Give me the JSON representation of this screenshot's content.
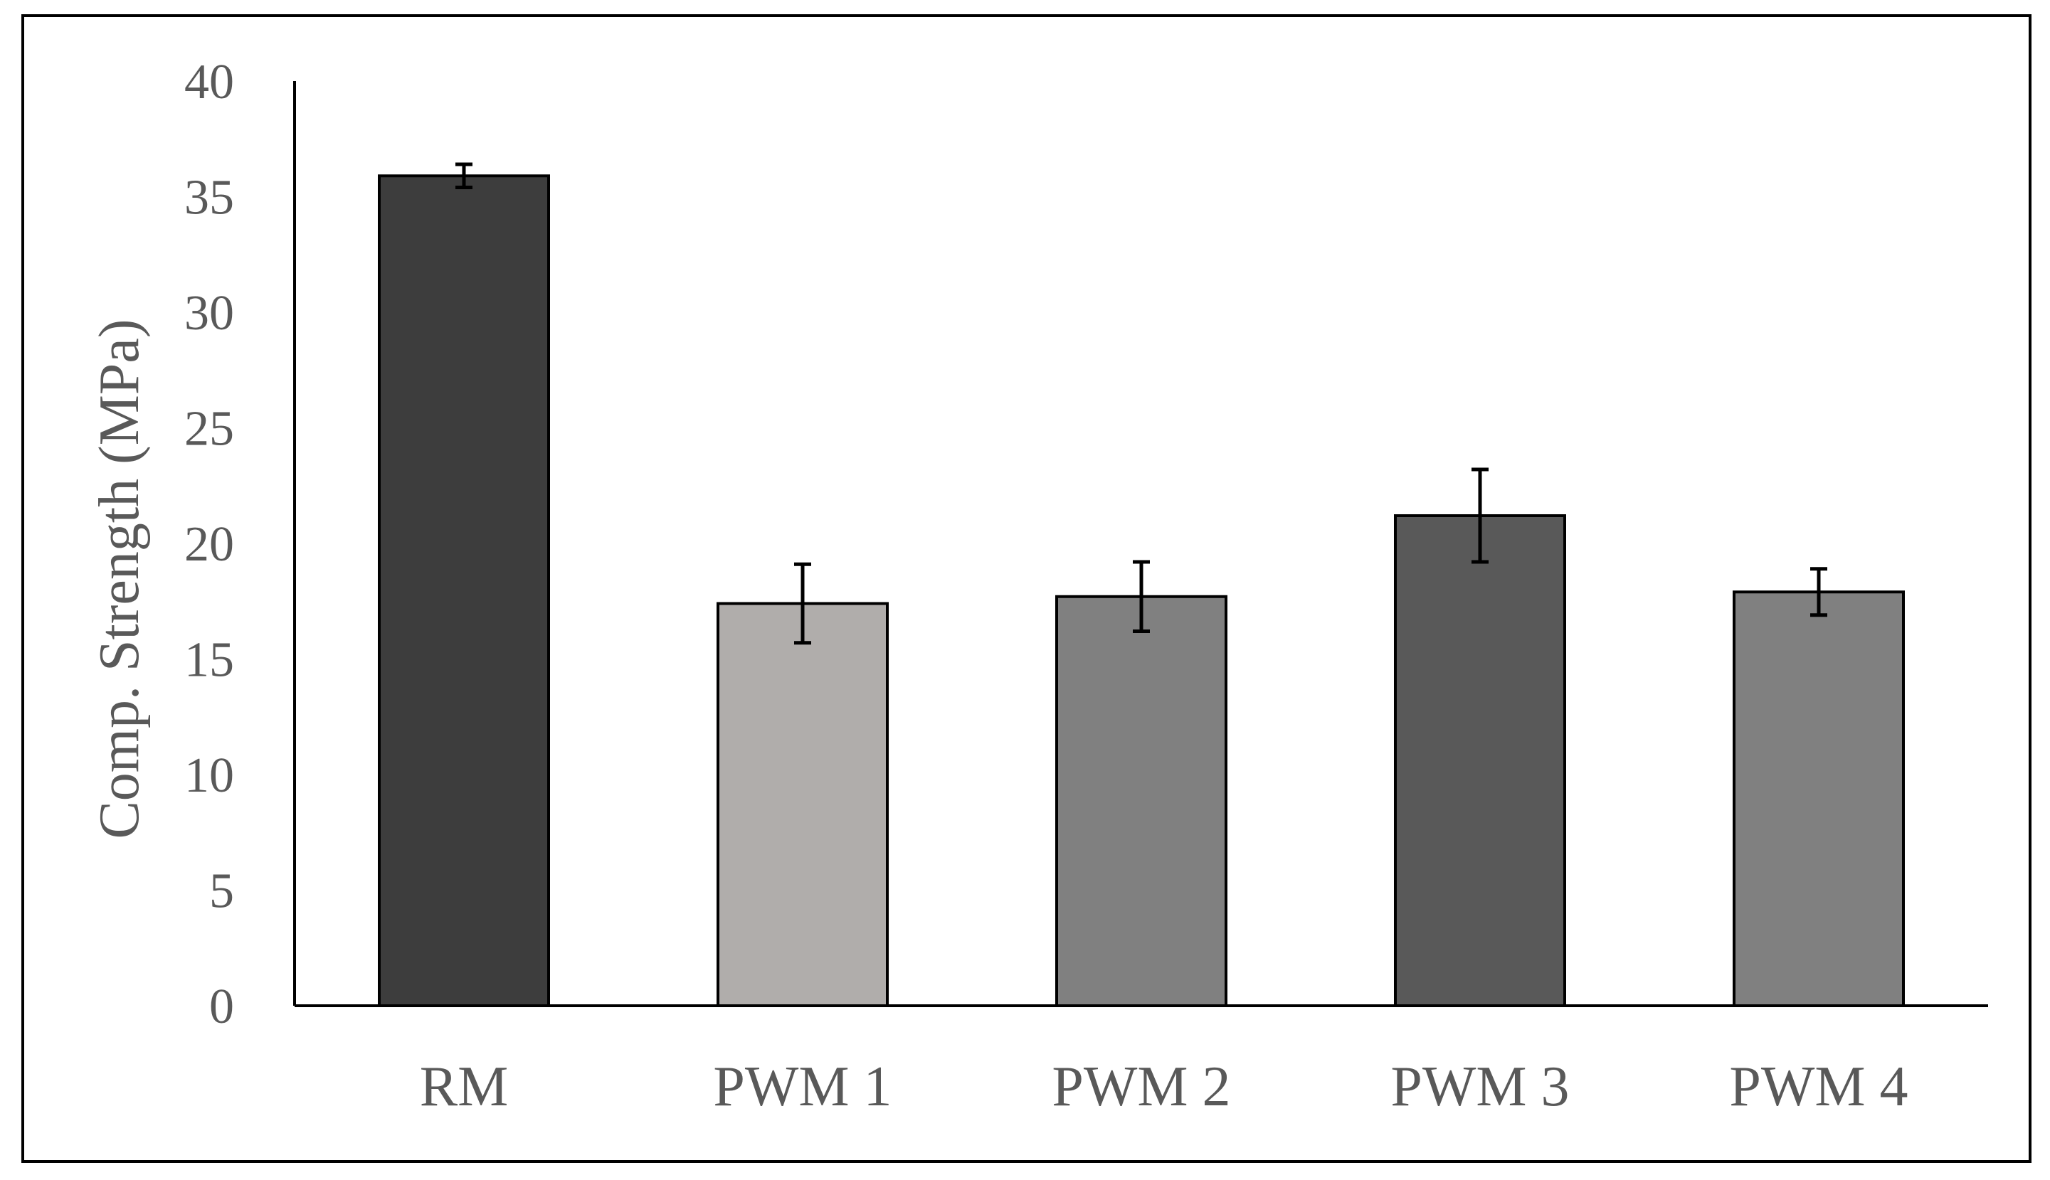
{
  "chart_data": {
    "type": "bar",
    "title": "",
    "xlabel": "",
    "ylabel": "Comp. Strength (MPa)",
    "ylim": [
      0,
      40
    ],
    "yticks": [
      0,
      5,
      10,
      15,
      20,
      25,
      30,
      35,
      40
    ],
    "grid": false,
    "categories": [
      "RM",
      "PWM 1",
      "PWM 2",
      "PWM 3",
      "PWM 4"
    ],
    "values": [
      35.9,
      17.4,
      17.7,
      21.2,
      17.9
    ],
    "errors": [
      0.5,
      1.7,
      1.5,
      2.0,
      1.0
    ],
    "colors": [
      "#3d3d3d",
      "#b0adab",
      "#808080",
      "#595959",
      "#808080"
    ]
  }
}
